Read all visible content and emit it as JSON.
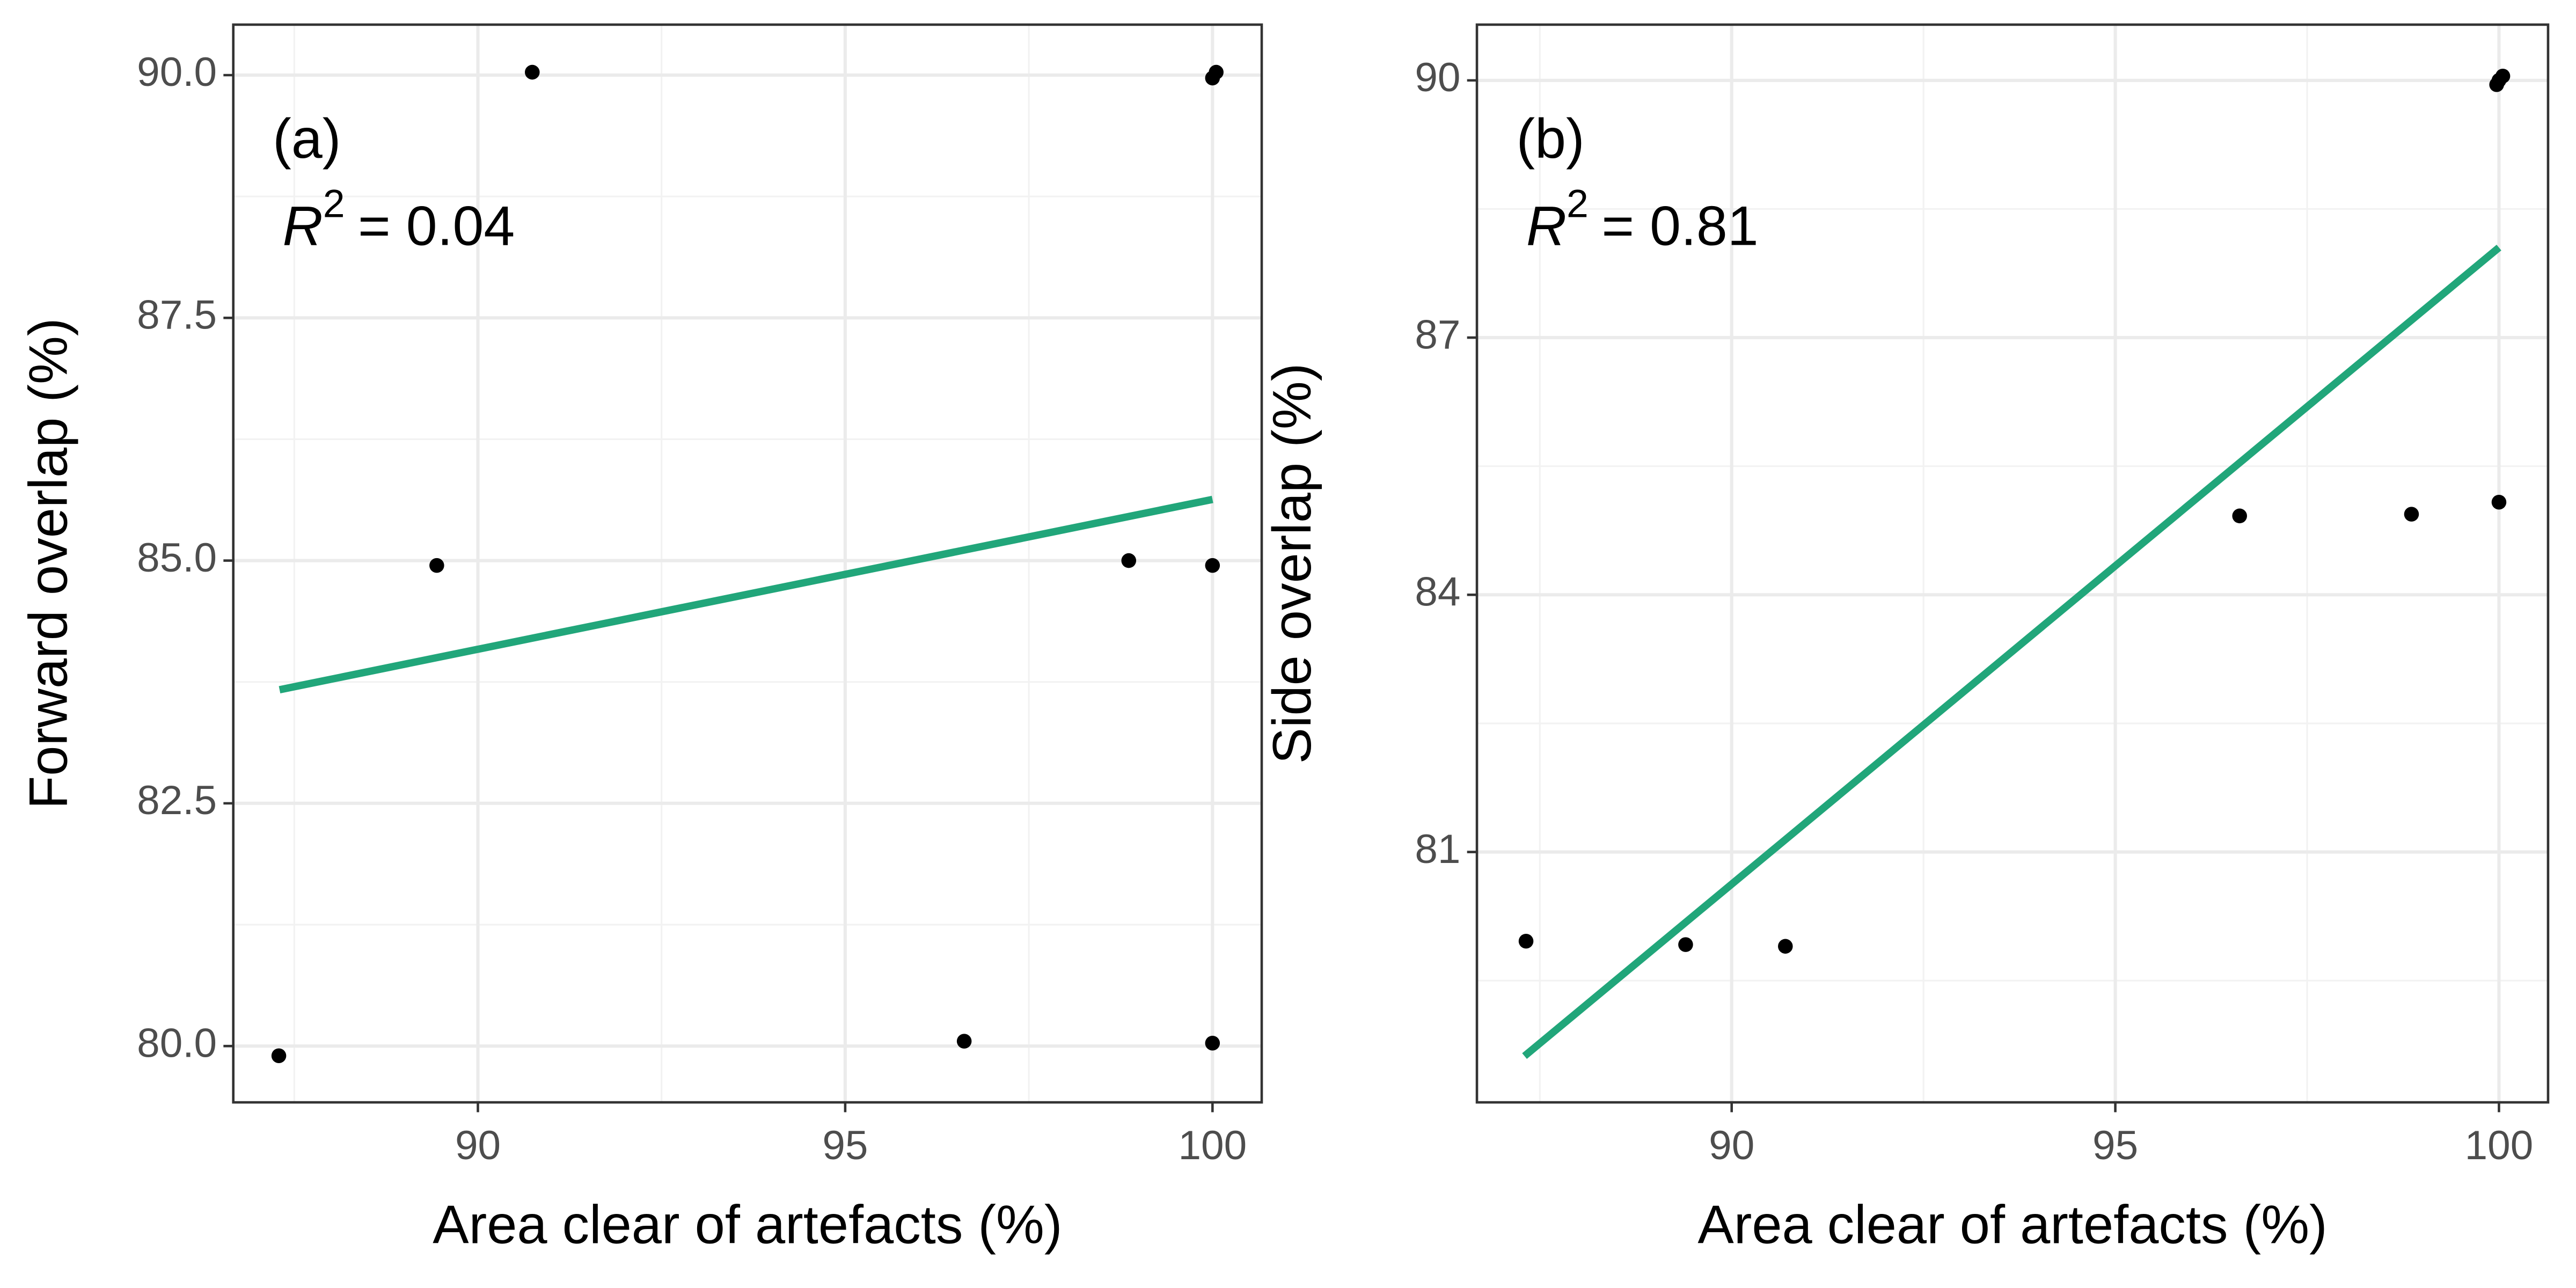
{
  "chart_data": [
    {
      "type": "scatter",
      "panel_label": "(a)",
      "r2": {
        "symbol": "R",
        "exponent": "2",
        "text": "= 0.04"
      },
      "x_label": "Area clear of artefacts (%)",
      "y_label": "Forward overlap (%)",
      "x": [
        87.29,
        89.44,
        90.74,
        96.62,
        98.86,
        100.0,
        100.0,
        100.0,
        100.05
      ],
      "y": [
        79.9,
        84.95,
        90.03,
        80.05,
        85.0,
        84.95,
        80.03,
        89.97,
        90.03
      ],
      "color": "#000000",
      "fit": {
        "x": [
          87.3,
          100.0
        ],
        "y": [
          83.67,
          85.63
        ],
        "color": "#21a67a"
      },
      "xlim": [
        86.67,
        100.67
      ],
      "ylim": [
        79.42,
        90.52
      ],
      "xticks": [
        90,
        95,
        100
      ],
      "yticks": [
        {
          "value": 80,
          "label": "80.0"
        },
        82.5,
        {
          "value": 85,
          "label": "85.0"
        },
        87.5,
        {
          "value": 90,
          "label": "90.0"
        }
      ],
      "xminorticks": [
        87.5,
        92.5,
        97.5
      ],
      "yminorticks": [
        81.25,
        83.75,
        86.25,
        88.75
      ],
      "grid": true
    },
    {
      "type": "scatter",
      "panel_label": "(b)",
      "r2": {
        "symbol": "R",
        "exponent": "2",
        "text": "= 0.81"
      },
      "x_label": "Area clear of artefacts (%)",
      "y_label": "Side overlap (%)",
      "x": [
        87.32,
        89.4,
        90.7,
        96.62,
        98.86,
        100.0,
        100.0,
        99.97,
        100.05
      ],
      "y": [
        79.96,
        79.92,
        79.9,
        84.92,
        84.94,
        85.08,
        90.0,
        89.95,
        90.05
      ],
      "color": "#000000",
      "fit": {
        "x": [
          87.3,
          100.0
        ],
        "y": [
          78.62,
          88.05
        ],
        "color": "#21a67a"
      },
      "xlim": [
        86.68,
        100.64
      ],
      "ylim": [
        78.08,
        90.65
      ],
      "xticks": [
        90,
        95,
        100
      ],
      "yticks": [
        81,
        84,
        87,
        90
      ],
      "xminorticks": [
        87.5,
        92.5,
        97.5
      ],
      "yminorticks": [
        79.5,
        82.5,
        85.5,
        88.5
      ],
      "grid": true
    }
  ]
}
